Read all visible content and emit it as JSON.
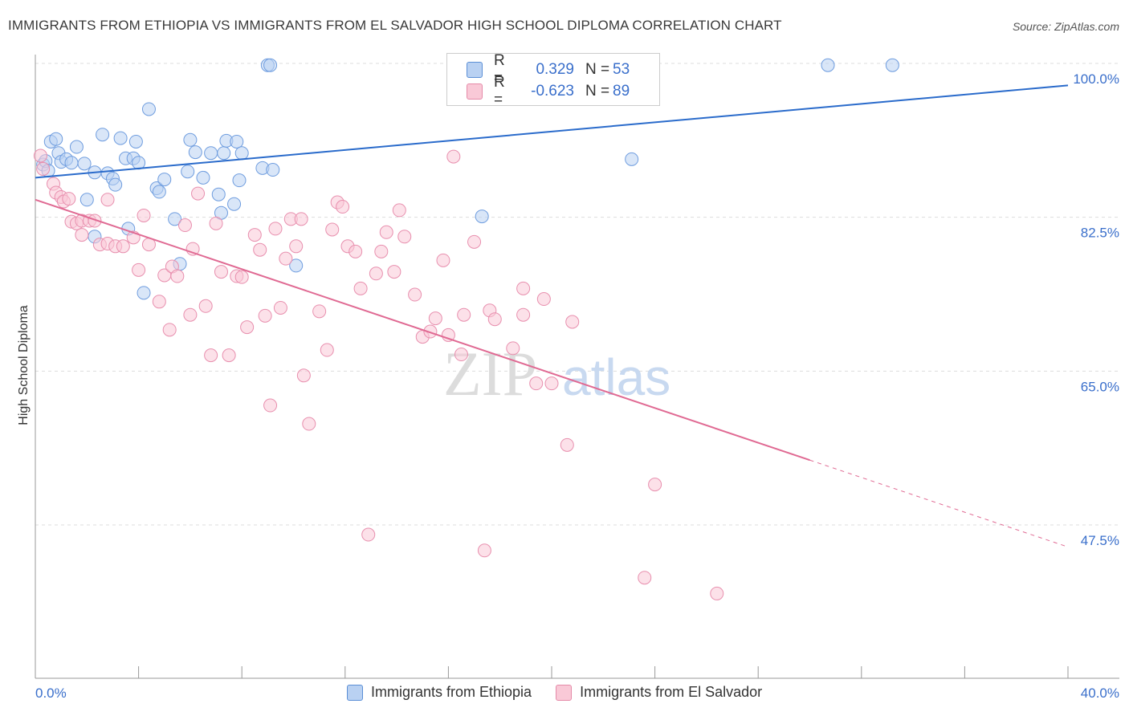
{
  "title": "IMMIGRANTS FROM ETHIOPIA VS IMMIGRANTS FROM EL SALVADOR HIGH SCHOOL DIPLOMA CORRELATION CHART",
  "source": "Source: ZipAtlas.com",
  "watermark": {
    "zip": "ZIP",
    "atlas": "atlas"
  },
  "legend": {
    "r_label": "R =",
    "n_label": "N =",
    "rows": [
      {
        "r": "0.329",
        "n": "53",
        "fill": "#b9d1f2",
        "stroke": "#5b8fd6"
      },
      {
        "r": "-0.623",
        "n": "89",
        "fill": "#f9c9d7",
        "stroke": "#e58aa8"
      }
    ]
  },
  "bottom_legend": [
    "Immigrants from Ethiopia",
    "Immigrants from El Salvador"
  ],
  "colors": {
    "ethiopia_fill": "#b9d1f2",
    "ethiopia_stroke": "#6f9ddf",
    "ethiopia_line": "#2a6bcb",
    "salvador_fill": "#f9c9d7",
    "salvador_stroke": "#e88fae",
    "salvador_line": "#e06a93",
    "axis_text": "#3a6fcb",
    "grid": "#dddddd"
  },
  "chart_data": {
    "type": "scatter",
    "title": "IMMIGRANTS FROM ETHIOPIA VS IMMIGRANTS FROM EL SALVADOR HIGH SCHOOL DIPLOMA CORRELATION CHART",
    "xlabel": "",
    "ylabel": "High School Diploma",
    "xlim": [
      0,
      40
    ],
    "ylim": [
      32,
      102
    ],
    "x_tick_labels": [
      "0.0%",
      "40.0%"
    ],
    "y_ticks": [
      47.5,
      65.0,
      82.5,
      100.0
    ],
    "y_tick_labels": [
      "47.5%",
      "65.0%",
      "82.5%",
      "100.0%"
    ],
    "grid": true,
    "legend_position": "top-center",
    "series": [
      {
        "name": "Immigrants from Ethiopia",
        "r": 0.329,
        "n": 53,
        "trend": {
          "x": [
            0,
            40
          ],
          "y": [
            87.0,
            97.5
          ],
          "dashed_from_x": null
        },
        "points": [
          [
            0.3,
            88.5
          ],
          [
            0.4,
            88.9
          ],
          [
            0.5,
            87.8
          ],
          [
            0.6,
            91.1
          ],
          [
            0.8,
            91.4
          ],
          [
            0.9,
            89.8
          ],
          [
            1.0,
            88.8
          ],
          [
            1.2,
            89.1
          ],
          [
            1.4,
            88.7
          ],
          [
            1.6,
            90.5
          ],
          [
            1.9,
            88.6
          ],
          [
            2.0,
            84.5
          ],
          [
            2.3,
            87.6
          ],
          [
            2.6,
            91.9
          ],
          [
            2.8,
            87.5
          ],
          [
            3.0,
            86.9
          ],
          [
            3.1,
            86.2
          ],
          [
            3.3,
            91.5
          ],
          [
            3.5,
            89.2
          ],
          [
            3.8,
            89.2
          ],
          [
            3.9,
            91.1
          ],
          [
            4.0,
            88.7
          ],
          [
            4.4,
            94.8
          ],
          [
            4.7,
            85.8
          ],
          [
            4.8,
            85.4
          ],
          [
            5.0,
            86.8
          ],
          [
            5.4,
            82.3
          ],
          [
            5.6,
            77.2
          ],
          [
            5.9,
            87.7
          ],
          [
            6.0,
            91.3
          ],
          [
            6.2,
            89.9
          ],
          [
            6.5,
            87.0
          ],
          [
            6.8,
            89.8
          ],
          [
            7.1,
            85.1
          ],
          [
            7.2,
            83.0
          ],
          [
            7.3,
            89.8
          ],
          [
            7.4,
            91.2
          ],
          [
            7.7,
            84.0
          ],
          [
            7.8,
            91.1
          ],
          [
            7.9,
            86.7
          ],
          [
            8.0,
            89.8
          ],
          [
            8.8,
            88.1
          ],
          [
            9.0,
            99.8
          ],
          [
            9.1,
            99.8
          ],
          [
            9.2,
            87.9
          ],
          [
            10.1,
            77.0
          ],
          [
            17.3,
            82.6
          ],
          [
            23.1,
            89.1
          ],
          [
            30.7,
            99.8
          ],
          [
            33.2,
            99.8
          ],
          [
            2.3,
            80.3
          ],
          [
            3.6,
            81.2
          ],
          [
            4.2,
            73.9
          ]
        ]
      },
      {
        "name": "Immigrants from El Salvador",
        "r": -0.623,
        "n": 89,
        "trend": {
          "x": [
            0,
            40
          ],
          "y": [
            84.5,
            45.0
          ],
          "dashed_from_x": 30
        },
        "points": [
          [
            0.2,
            89.5
          ],
          [
            0.3,
            88.0
          ],
          [
            0.7,
            86.3
          ],
          [
            0.8,
            85.3
          ],
          [
            1.0,
            84.8
          ],
          [
            1.1,
            84.3
          ],
          [
            1.3,
            84.6
          ],
          [
            1.4,
            82.0
          ],
          [
            1.6,
            81.8
          ],
          [
            1.8,
            82.1
          ],
          [
            1.8,
            80.5
          ],
          [
            2.1,
            82.1
          ],
          [
            2.3,
            82.1
          ],
          [
            2.5,
            79.4
          ],
          [
            2.8,
            84.5
          ],
          [
            2.8,
            79.5
          ],
          [
            3.1,
            79.2
          ],
          [
            3.4,
            79.2
          ],
          [
            3.8,
            80.2
          ],
          [
            4.0,
            76.5
          ],
          [
            4.2,
            82.7
          ],
          [
            4.4,
            79.4
          ],
          [
            4.8,
            72.9
          ],
          [
            5.0,
            75.9
          ],
          [
            5.2,
            69.7
          ],
          [
            5.3,
            76.9
          ],
          [
            5.5,
            75.8
          ],
          [
            5.8,
            81.6
          ],
          [
            6.0,
            71.4
          ],
          [
            6.1,
            78.9
          ],
          [
            6.3,
            85.2
          ],
          [
            6.6,
            72.4
          ],
          [
            6.8,
            66.8
          ],
          [
            7.0,
            81.8
          ],
          [
            7.2,
            76.3
          ],
          [
            7.5,
            66.8
          ],
          [
            7.8,
            75.8
          ],
          [
            8.0,
            75.7
          ],
          [
            8.2,
            70.0
          ],
          [
            8.5,
            80.5
          ],
          [
            8.7,
            78.8
          ],
          [
            8.9,
            71.3
          ],
          [
            9.1,
            61.1
          ],
          [
            9.3,
            81.2
          ],
          [
            9.5,
            72.2
          ],
          [
            9.7,
            77.8
          ],
          [
            9.9,
            82.3
          ],
          [
            10.1,
            79.2
          ],
          [
            10.3,
            82.3
          ],
          [
            10.4,
            64.5
          ],
          [
            10.6,
            59.0
          ],
          [
            11.0,
            71.8
          ],
          [
            11.3,
            67.4
          ],
          [
            11.5,
            81.1
          ],
          [
            11.7,
            84.2
          ],
          [
            11.9,
            83.7
          ],
          [
            12.1,
            79.2
          ],
          [
            12.4,
            78.6
          ],
          [
            12.6,
            74.4
          ],
          [
            12.9,
            46.4
          ],
          [
            13.2,
            76.1
          ],
          [
            13.4,
            78.6
          ],
          [
            13.6,
            80.8
          ],
          [
            13.9,
            76.3
          ],
          [
            14.1,
            83.3
          ],
          [
            14.3,
            80.3
          ],
          [
            14.7,
            73.7
          ],
          [
            15.0,
            68.9
          ],
          [
            15.3,
            69.5
          ],
          [
            15.5,
            71.0
          ],
          [
            15.8,
            77.6
          ],
          [
            16.0,
            69.1
          ],
          [
            16.2,
            89.4
          ],
          [
            16.5,
            66.9
          ],
          [
            16.6,
            71.4
          ],
          [
            17.0,
            79.7
          ],
          [
            17.4,
            44.6
          ],
          [
            17.6,
            71.9
          ],
          [
            17.8,
            70.9
          ],
          [
            18.5,
            67.6
          ],
          [
            18.9,
            71.4
          ],
          [
            18.9,
            74.4
          ],
          [
            19.4,
            63.6
          ],
          [
            19.7,
            73.2
          ],
          [
            20.0,
            63.6
          ],
          [
            20.6,
            56.6
          ],
          [
            20.8,
            70.6
          ],
          [
            23.6,
            41.5
          ],
          [
            24.0,
            52.1
          ],
          [
            26.4,
            39.7
          ]
        ]
      }
    ]
  }
}
